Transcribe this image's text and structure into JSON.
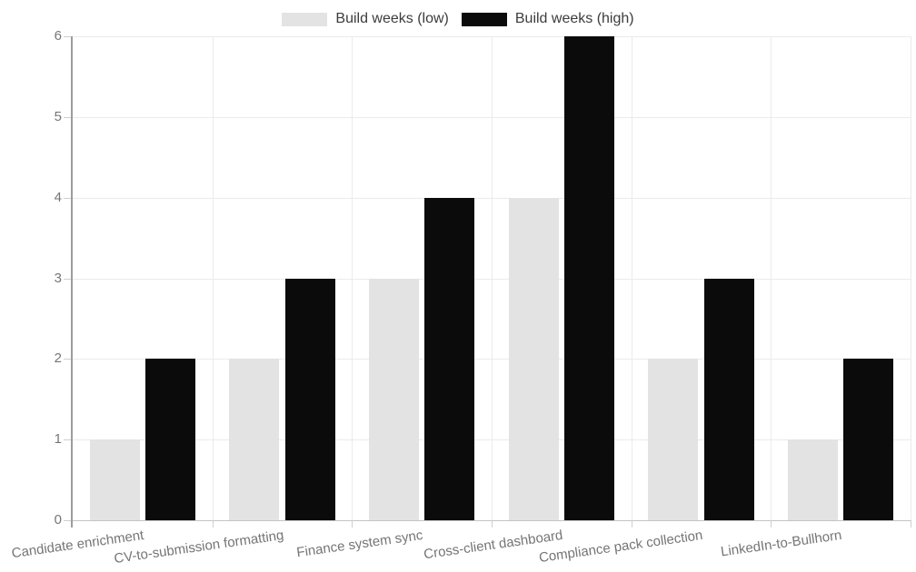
{
  "chart_data": {
    "type": "bar",
    "categories": [
      "Candidate enrichment",
      "CV-to-submission formatting",
      "Finance system sync",
      "Cross-client dashboard",
      "Compliance pack collection",
      "LinkedIn-to-Bullhorn"
    ],
    "series": [
      {
        "name": "Build weeks (low)",
        "color": "#e3e3e3",
        "values": [
          1,
          2,
          3,
          4,
          2,
          1
        ]
      },
      {
        "name": "Build weeks (high)",
        "color": "#0b0b0b",
        "values": [
          2,
          3,
          4,
          6,
          3,
          2
        ]
      }
    ],
    "title": "",
    "xlabel": "",
    "ylabel": "",
    "ylim": [
      0,
      6
    ],
    "yticks": [
      0,
      1,
      2,
      3,
      4,
      5,
      6
    ],
    "grid": true,
    "legend_position": "top"
  },
  "colors": {
    "background": "#ffffff",
    "gridline": "#ebebeb",
    "y_axis_line": "#9c9c9c",
    "zero_line": "#c4c4c4",
    "tick_dash": "#cfcfcf",
    "tick_label": "#757575",
    "legend_text": "#3c3c3c"
  }
}
